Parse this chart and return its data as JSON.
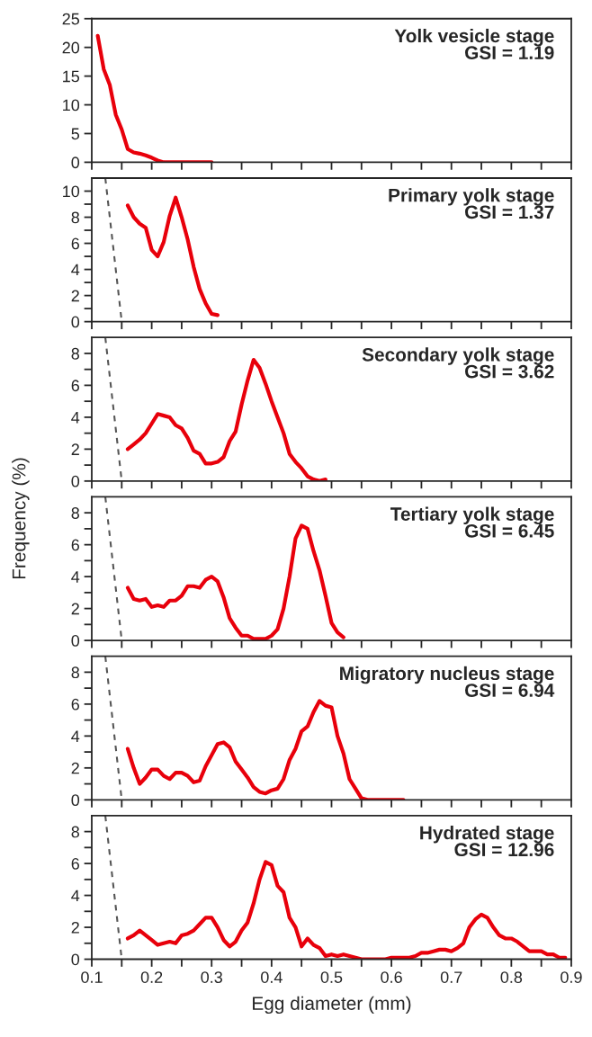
{
  "chart_data": [
    {
      "type": "line",
      "title": "Yolk vesicle stage",
      "subtitle": "GSI = 1.19",
      "tick_labels": "y",
      "xlim": [
        0.1,
        0.9
      ],
      "ylim": [
        0,
        25
      ],
      "xticks": [
        {
          "value": 0.1,
          "label": null
        },
        {
          "value": 0.15,
          "label": null
        },
        {
          "value": 0.2,
          "label": null
        },
        {
          "value": 0.25,
          "label": null
        },
        {
          "value": 0.3,
          "label": null
        },
        {
          "value": 0.35,
          "label": null
        },
        {
          "value": 0.4,
          "label": null
        },
        {
          "value": 0.45,
          "label": null
        },
        {
          "value": 0.5,
          "label": null
        },
        {
          "value": 0.55,
          "label": null
        },
        {
          "value": 0.6,
          "label": null
        },
        {
          "value": 0.65,
          "label": null
        },
        {
          "value": 0.7,
          "label": null
        },
        {
          "value": 0.75,
          "label": null
        },
        {
          "value": 0.8,
          "label": null
        },
        {
          "value": 0.85,
          "label": null
        },
        {
          "value": 0.9,
          "label": null
        }
      ],
      "yticks": [
        0,
        5,
        10,
        15,
        20,
        25
      ],
      "series": [
        {
          "color": "#e8000b",
          "x": [
            0.11,
            0.12,
            0.13,
            0.14,
            0.15,
            0.16,
            0.17,
            0.18,
            0.19,
            0.2,
            0.21,
            0.22,
            0.23,
            0.24,
            0.25,
            0.26,
            0.27,
            0.28,
            0.29,
            0.3
          ],
          "values": [
            22,
            16.2,
            13.5,
            8.3,
            5.7,
            2.3,
            1.7,
            1.5,
            1.2,
            0.8,
            0.3,
            0,
            0,
            0,
            0,
            0,
            0,
            0,
            0,
            0
          ]
        }
      ]
    },
    {
      "type": "line",
      "title": "Primary yolk stage",
      "subtitle": "GSI = 1.37",
      "tick_labels": "y",
      "xlim": [
        0.1,
        0.9
      ],
      "ylim": [
        0,
        11
      ],
      "xticks": [
        {
          "value": 0.1,
          "label": null
        },
        {
          "value": 0.15,
          "label": null
        },
        {
          "value": 0.2,
          "label": null
        },
        {
          "value": 0.25,
          "label": null
        },
        {
          "value": 0.3,
          "label": null
        },
        {
          "value": 0.35,
          "label": null
        },
        {
          "value": 0.4,
          "label": null
        },
        {
          "value": 0.45,
          "label": null
        },
        {
          "value": 0.5,
          "label": null
        },
        {
          "value": 0.55,
          "label": null
        },
        {
          "value": 0.6,
          "label": null
        },
        {
          "value": 0.65,
          "label": null
        },
        {
          "value": 0.7,
          "label": null
        },
        {
          "value": 0.75,
          "label": null
        },
        {
          "value": 0.8,
          "label": null
        },
        {
          "value": 0.85,
          "label": null
        },
        {
          "value": 0.9,
          "label": null
        }
      ],
      "yticks": [
        0,
        {
          "value": 1,
          "label": null
        },
        2,
        {
          "value": 3,
          "label": null
        },
        4,
        {
          "value": 5,
          "label": null
        },
        6,
        {
          "value": 7,
          "label": null
        },
        8,
        {
          "value": 9,
          "label": null
        },
        10
      ],
      "series": [
        {
          "color": "#e8000b",
          "x": [
            0.16,
            0.17,
            0.18,
            0.19,
            0.2,
            0.21,
            0.22,
            0.23,
            0.24,
            0.25,
            0.26,
            0.27,
            0.28,
            0.29,
            0.3,
            0.31
          ],
          "values": [
            8.9,
            8.0,
            7.5,
            7.2,
            5.5,
            5.0,
            6.1,
            8.1,
            9.5,
            8.0,
            6.3,
            4.2,
            2.5,
            1.4,
            0.6,
            0.5
          ]
        },
        {
          "color": "#555555",
          "line_style": "dashed",
          "x": [
            0.1226,
            0.15
          ],
          "values": [
            11,
            0
          ]
        }
      ]
    },
    {
      "type": "line",
      "title": "Secondary yolk stage",
      "subtitle": "GSI = 3.62",
      "tick_labels": "y",
      "ylabel": "Frequency (%)",
      "xlim": [
        0.1,
        0.9
      ],
      "ylim": [
        0,
        9
      ],
      "xticks": [
        {
          "value": 0.1,
          "label": null
        },
        {
          "value": 0.15,
          "label": null
        },
        {
          "value": 0.2,
          "label": null
        },
        {
          "value": 0.25,
          "label": null
        },
        {
          "value": 0.3,
          "label": null
        },
        {
          "value": 0.35,
          "label": null
        },
        {
          "value": 0.4,
          "label": null
        },
        {
          "value": 0.45,
          "label": null
        },
        {
          "value": 0.5,
          "label": null
        },
        {
          "value": 0.55,
          "label": null
        },
        {
          "value": 0.6,
          "label": null
        },
        {
          "value": 0.65,
          "label": null
        },
        {
          "value": 0.7,
          "label": null
        },
        {
          "value": 0.75,
          "label": null
        },
        {
          "value": 0.8,
          "label": null
        },
        {
          "value": 0.85,
          "label": null
        },
        {
          "value": 0.9,
          "label": null
        }
      ],
      "yticks": [
        0,
        {
          "value": 1,
          "label": null
        },
        2,
        {
          "value": 3,
          "label": null
        },
        4,
        {
          "value": 5,
          "label": null
        },
        6,
        {
          "value": 7,
          "label": null
        },
        8
      ],
      "series": [
        {
          "color": "#e8000b",
          "x": [
            0.16,
            0.17,
            0.18,
            0.19,
            0.2,
            0.21,
            0.22,
            0.23,
            0.24,
            0.25,
            0.26,
            0.27,
            0.28,
            0.29,
            0.3,
            0.31,
            0.32,
            0.33,
            0.34,
            0.35,
            0.36,
            0.37,
            0.38,
            0.39,
            0.4,
            0.41,
            0.42,
            0.43,
            0.44,
            0.45,
            0.46,
            0.47,
            0.48,
            0.49
          ],
          "values": [
            2.0,
            2.3,
            2.6,
            3.0,
            3.6,
            4.2,
            4.1,
            4.0,
            3.5,
            3.3,
            2.7,
            1.9,
            1.7,
            1.1,
            1.1,
            1.2,
            1.5,
            2.5,
            3.1,
            4.8,
            6.3,
            7.6,
            7.1,
            6.1,
            5.0,
            4.0,
            3.0,
            1.7,
            1.2,
            0.8,
            0.3,
            0.1,
            0.0,
            0.1
          ]
        },
        {
          "color": "#555555",
          "line_style": "dashed",
          "x": [
            0.1226,
            0.15
          ],
          "values": [
            9,
            0
          ]
        }
      ]
    },
    {
      "type": "line",
      "title": "Tertiary yolk stage",
      "subtitle": "GSI = 6.45",
      "tick_labels": "y",
      "xlim": [
        0.1,
        0.9
      ],
      "ylim": [
        0,
        9
      ],
      "xticks": [
        {
          "value": 0.1,
          "label": null
        },
        {
          "value": 0.15,
          "label": null
        },
        {
          "value": 0.2,
          "label": null
        },
        {
          "value": 0.25,
          "label": null
        },
        {
          "value": 0.3,
          "label": null
        },
        {
          "value": 0.35,
          "label": null
        },
        {
          "value": 0.4,
          "label": null
        },
        {
          "value": 0.45,
          "label": null
        },
        {
          "value": 0.5,
          "label": null
        },
        {
          "value": 0.55,
          "label": null
        },
        {
          "value": 0.6,
          "label": null
        },
        {
          "value": 0.65,
          "label": null
        },
        {
          "value": 0.7,
          "label": null
        },
        {
          "value": 0.75,
          "label": null
        },
        {
          "value": 0.8,
          "label": null
        },
        {
          "value": 0.85,
          "label": null
        },
        {
          "value": 0.9,
          "label": null
        }
      ],
      "yticks": [
        0,
        {
          "value": 1,
          "label": null
        },
        2,
        {
          "value": 3,
          "label": null
        },
        4,
        {
          "value": 5,
          "label": null
        },
        6,
        {
          "value": 7,
          "label": null
        },
        8
      ],
      "series": [
        {
          "color": "#e8000b",
          "x": [
            0.16,
            0.17,
            0.18,
            0.19,
            0.2,
            0.21,
            0.22,
            0.23,
            0.24,
            0.25,
            0.26,
            0.27,
            0.28,
            0.29,
            0.3,
            0.31,
            0.32,
            0.33,
            0.34,
            0.35,
            0.36,
            0.37,
            0.38,
            0.39,
            0.4,
            0.41,
            0.42,
            0.43,
            0.44,
            0.45,
            0.46,
            0.47,
            0.48,
            0.49,
            0.5,
            0.51,
            0.52
          ],
          "values": [
            3.3,
            2.6,
            2.5,
            2.6,
            2.1,
            2.2,
            2.1,
            2.5,
            2.5,
            2.8,
            3.4,
            3.4,
            3.3,
            3.8,
            4.0,
            3.7,
            2.7,
            1.4,
            0.8,
            0.3,
            0.3,
            0.1,
            0.1,
            0.1,
            0.3,
            0.7,
            2.0,
            4.0,
            6.4,
            7.2,
            7.0,
            5.6,
            4.4,
            2.8,
            1.1,
            0.5,
            0.2
          ]
        },
        {
          "color": "#555555",
          "line_style": "dashed",
          "x": [
            0.1226,
            0.15
          ],
          "values": [
            9,
            0
          ]
        }
      ]
    },
    {
      "type": "line",
      "title": "Migratory nucleus stage",
      "subtitle": "GSI = 6.94",
      "tick_labels": "y",
      "xlim": [
        0.1,
        0.9
      ],
      "ylim": [
        0,
        9
      ],
      "xticks": [
        {
          "value": 0.1,
          "label": null
        },
        {
          "value": 0.15,
          "label": null
        },
        {
          "value": 0.2,
          "label": null
        },
        {
          "value": 0.25,
          "label": null
        },
        {
          "value": 0.3,
          "label": null
        },
        {
          "value": 0.35,
          "label": null
        },
        {
          "value": 0.4,
          "label": null
        },
        {
          "value": 0.45,
          "label": null
        },
        {
          "value": 0.5,
          "label": null
        },
        {
          "value": 0.55,
          "label": null
        },
        {
          "value": 0.6,
          "label": null
        },
        {
          "value": 0.65,
          "label": null
        },
        {
          "value": 0.7,
          "label": null
        },
        {
          "value": 0.75,
          "label": null
        },
        {
          "value": 0.8,
          "label": null
        },
        {
          "value": 0.85,
          "label": null
        },
        {
          "value": 0.9,
          "label": null
        }
      ],
      "yticks": [
        0,
        {
          "value": 1,
          "label": null
        },
        2,
        {
          "value": 3,
          "label": null
        },
        4,
        {
          "value": 5,
          "label": null
        },
        6,
        {
          "value": 7,
          "label": null
        },
        8
      ],
      "series": [
        {
          "color": "#e8000b",
          "x": [
            0.16,
            0.17,
            0.18,
            0.19,
            0.2,
            0.21,
            0.22,
            0.23,
            0.24,
            0.25,
            0.26,
            0.27,
            0.28,
            0.29,
            0.3,
            0.31,
            0.32,
            0.33,
            0.34,
            0.35,
            0.36,
            0.37,
            0.38,
            0.39,
            0.4,
            0.41,
            0.42,
            0.43,
            0.44,
            0.45,
            0.46,
            0.47,
            0.48,
            0.49,
            0.5,
            0.51,
            0.52,
            0.53,
            0.54,
            0.55,
            0.56,
            0.57,
            0.58,
            0.59,
            0.6,
            0.61,
            0.62
          ],
          "values": [
            3.2,
            2.0,
            1.0,
            1.4,
            1.9,
            1.9,
            1.5,
            1.3,
            1.7,
            1.7,
            1.5,
            1.1,
            1.2,
            2.1,
            2.8,
            3.5,
            3.6,
            3.3,
            2.4,
            1.9,
            1.4,
            0.8,
            0.5,
            0.4,
            0.6,
            0.7,
            1.3,
            2.5,
            3.2,
            4.3,
            4.6,
            5.5,
            6.2,
            5.9,
            5.8,
            4.0,
            2.9,
            1.3,
            0.7,
            0.1,
            0,
            0,
            0,
            0,
            0,
            0,
            0
          ]
        },
        {
          "color": "#555555",
          "line_style": "dashed",
          "x": [
            0.1226,
            0.15
          ],
          "values": [
            9,
            0
          ]
        }
      ]
    },
    {
      "type": "line",
      "title": "Hydrated stage",
      "subtitle": "GSI = 12.96",
      "xlabel": "Egg diameter (mm)",
      "xlim": [
        0.1,
        0.9
      ],
      "ylim": [
        0,
        9
      ],
      "xticks": [
        0.1,
        {
          "value": 0.15,
          "label": null
        },
        0.2,
        {
          "value": 0.25,
          "label": null
        },
        0.3,
        {
          "value": 0.35,
          "label": null
        },
        0.4,
        {
          "value": 0.45,
          "label": null
        },
        0.5,
        {
          "value": 0.55,
          "label": null
        },
        0.6,
        {
          "value": 0.65,
          "label": null
        },
        0.7,
        {
          "value": 0.75,
          "label": null
        },
        0.8,
        {
          "value": 0.85,
          "label": null
        },
        0.9
      ],
      "yticks": [
        0,
        {
          "value": 1,
          "label": null
        },
        2,
        {
          "value": 3,
          "label": null
        },
        4,
        {
          "value": 5,
          "label": null
        },
        6,
        {
          "value": 7,
          "label": null
        },
        8
      ],
      "series": [
        {
          "color": "#e8000b",
          "x": [
            0.16,
            0.17,
            0.18,
            0.19,
            0.2,
            0.21,
            0.22,
            0.23,
            0.24,
            0.25,
            0.26,
            0.27,
            0.28,
            0.29,
            0.3,
            0.31,
            0.32,
            0.33,
            0.34,
            0.35,
            0.36,
            0.37,
            0.38,
            0.39,
            0.4,
            0.41,
            0.42,
            0.43,
            0.44,
            0.45,
            0.46,
            0.47,
            0.48,
            0.49,
            0.5,
            0.51,
            0.52,
            0.53,
            0.54,
            0.55,
            0.56,
            0.57,
            0.58,
            0.59,
            0.6,
            0.61,
            0.62,
            0.63,
            0.64,
            0.65,
            0.66,
            0.67,
            0.68,
            0.69,
            0.7,
            0.71,
            0.72,
            0.73,
            0.74,
            0.75,
            0.76,
            0.77,
            0.78,
            0.79,
            0.8,
            0.81,
            0.82,
            0.83,
            0.84,
            0.85,
            0.86,
            0.87,
            0.88,
            0.89
          ],
          "values": [
            1.3,
            1.5,
            1.8,
            1.5,
            1.2,
            0.9,
            1.0,
            1.1,
            1.0,
            1.5,
            1.6,
            1.8,
            2.2,
            2.6,
            2.6,
            2.0,
            1.2,
            0.8,
            1.1,
            1.8,
            2.3,
            3.5,
            5.0,
            6.1,
            5.9,
            4.6,
            4.2,
            2.6,
            2.0,
            0.8,
            1.3,
            0.9,
            0.7,
            0.2,
            0.3,
            0.2,
            0.3,
            0.2,
            0.1,
            0,
            0,
            0,
            0,
            0,
            0.1,
            0.1,
            0.1,
            0.1,
            0.2,
            0.4,
            0.4,
            0.5,
            0.6,
            0.6,
            0.5,
            0.7,
            1.0,
            2.0,
            2.5,
            2.8,
            2.6,
            2.0,
            1.5,
            1.3,
            1.3,
            1.1,
            0.8,
            0.5,
            0.5,
            0.5,
            0.3,
            0.3,
            0.1,
            0.1
          ]
        },
        {
          "color": "#555555",
          "line_style": "dashed",
          "x": [
            0.1226,
            0.15
          ],
          "values": [
            9,
            0
          ]
        }
      ]
    }
  ]
}
